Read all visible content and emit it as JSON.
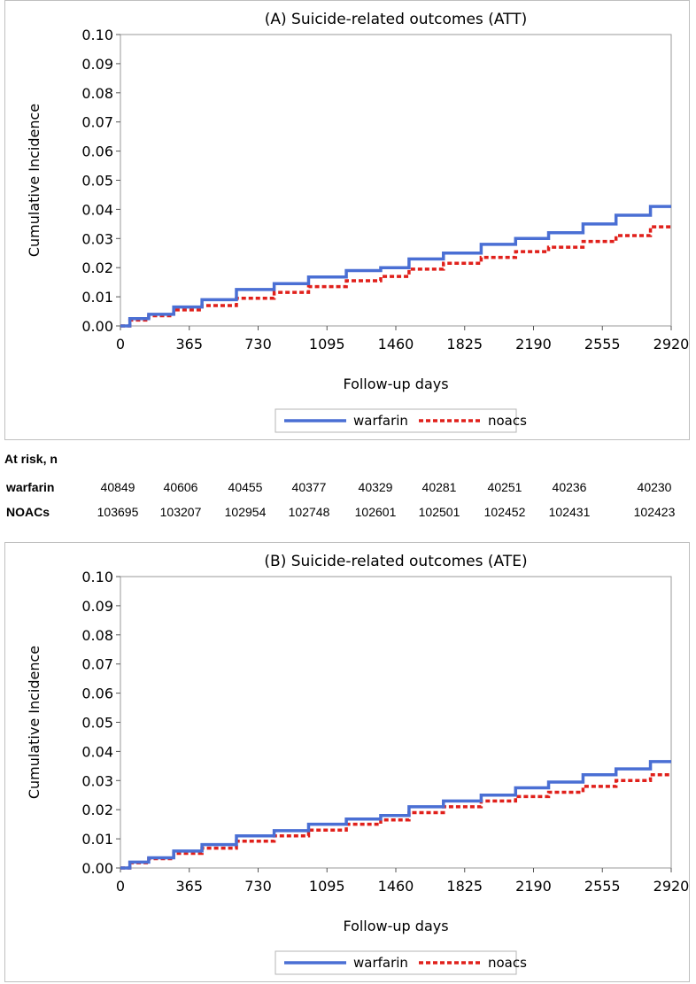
{
  "chart_data": [
    {
      "type": "line",
      "title": "(A) Suicide-related outcomes (ATT)",
      "xlabel": "Follow-up days",
      "ylabel": "Cumulative Incidence",
      "xlim": [
        0,
        2920
      ],
      "ylim": [
        0,
        0.1
      ],
      "xticks": [
        "0",
        "365",
        "730",
        "1095",
        "1460",
        "1825",
        "2190",
        "2555",
        "2920"
      ],
      "yticks": [
        "0.00",
        "0.01",
        "0.02",
        "0.03",
        "0.04",
        "0.05",
        "0.06",
        "0.07",
        "0.08",
        "0.09",
        "0.10"
      ],
      "legend_position": "bottom-center",
      "series": [
        {
          "name": "warfarin",
          "color": "#4a6fd4",
          "style": "solid",
          "x": [
            0,
            100,
            200,
            365,
            500,
            730,
            900,
            1095,
            1300,
            1460,
            1600,
            1825,
            2000,
            2190,
            2350,
            2555,
            2700,
            2920
          ],
          "y": [
            0,
            0.0025,
            0.004,
            0.0065,
            0.009,
            0.0125,
            0.0145,
            0.0168,
            0.019,
            0.02,
            0.023,
            0.025,
            0.028,
            0.03,
            0.032,
            0.035,
            0.038,
            0.041
          ]
        },
        {
          "name": "noacs",
          "color": "#e0201b",
          "style": "dashed",
          "x": [
            0,
            100,
            200,
            365,
            500,
            730,
            900,
            1095,
            1300,
            1460,
            1600,
            1825,
            2000,
            2190,
            2350,
            2555,
            2700,
            2920
          ],
          "y": [
            0,
            0.002,
            0.0035,
            0.0055,
            0.007,
            0.0095,
            0.0115,
            0.0135,
            0.0155,
            0.017,
            0.0195,
            0.0215,
            0.0235,
            0.0255,
            0.027,
            0.029,
            0.031,
            0.034
          ]
        }
      ]
    },
    {
      "type": "line",
      "title": "(B) Suicide-related outcomes (ATE)",
      "xlabel": "Follow-up days",
      "ylabel": "Cumulative Incidence",
      "xlim": [
        0,
        2920
      ],
      "ylim": [
        0,
        0.1
      ],
      "xticks": [
        "0",
        "365",
        "730",
        "1095",
        "1460",
        "1825",
        "2190",
        "2555",
        "2920"
      ],
      "yticks": [
        "0.00",
        "0.01",
        "0.02",
        "0.03",
        "0.04",
        "0.05",
        "0.06",
        "0.07",
        "0.08",
        "0.09",
        "0.10"
      ],
      "legend_position": "bottom-center",
      "series": [
        {
          "name": "warfarin",
          "color": "#4a6fd4",
          "style": "solid",
          "x": [
            0,
            100,
            200,
            365,
            500,
            730,
            900,
            1095,
            1300,
            1460,
            1600,
            1825,
            2000,
            2190,
            2350,
            2555,
            2700,
            2920
          ],
          "y": [
            0,
            0.002,
            0.0035,
            0.0058,
            0.008,
            0.011,
            0.0128,
            0.015,
            0.0168,
            0.018,
            0.021,
            0.023,
            0.025,
            0.0275,
            0.0295,
            0.032,
            0.034,
            0.0365
          ]
        },
        {
          "name": "noacs",
          "color": "#e0201b",
          "style": "dashed",
          "x": [
            0,
            100,
            200,
            365,
            500,
            730,
            900,
            1095,
            1300,
            1460,
            1600,
            1825,
            2000,
            2190,
            2350,
            2555,
            2700,
            2920
          ],
          "y": [
            0,
            0.0018,
            0.0032,
            0.005,
            0.0068,
            0.0092,
            0.011,
            0.013,
            0.015,
            0.0165,
            0.019,
            0.021,
            0.023,
            0.0245,
            0.026,
            0.028,
            0.03,
            0.032
          ]
        }
      ]
    }
  ],
  "at_risk": {
    "header": "At risk, n",
    "rows": [
      {
        "label": "warfarin",
        "values": [
          "40849",
          "40606",
          "40455",
          "40377",
          "40329",
          "40281",
          "40251",
          "40236",
          "40230"
        ]
      },
      {
        "label": "NOACs",
        "values": [
          "103695",
          "103207",
          "102954",
          "102748",
          "102601",
          "102501",
          "102452",
          "102431",
          "102423"
        ]
      }
    ]
  }
}
